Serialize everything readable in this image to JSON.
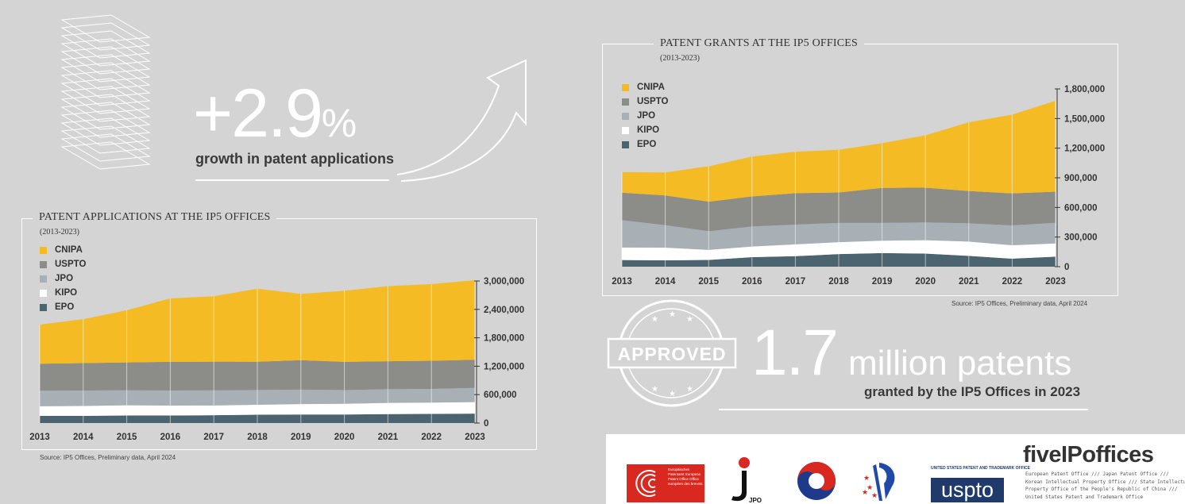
{
  "headline": {
    "growth_value": "+2.9",
    "growth_unit": "%",
    "growth_caption": "growth in patent applications"
  },
  "grants_highlight": {
    "value": "1.7",
    "unit": "million patents",
    "caption": "granted by the IP5 Offices in 2023",
    "stamp_label": "APPROVED"
  },
  "colors": {
    "CNIPA": "#f4bb24",
    "USPTO": "#8c8c88",
    "JPO": "#a8b0b6",
    "KIPO": "#ffffff",
    "EPO": "#4b6470",
    "background": "#d4d4d4"
  },
  "logos": {
    "epo_text": "Europäisches Patentamt European Patent Office Office européen des brevets",
    "jpo_label": "JPO",
    "uspto_small": "UNITED STATES PATENT AND TRADEMARK OFFICE",
    "uspto_word": "uspto",
    "five_title": "fiveIPoffices",
    "five_line1": "European Patent Office /// Japan Patent Office ///",
    "five_line2": "Korean Intellectual Property Office /// State Intellectual",
    "five_line3": "Property Office of the People's Republic of China ///",
    "five_line4": "United States Patent and Trademark Office"
  },
  "chart_data": [
    {
      "id": "applications",
      "type": "area",
      "stacked": true,
      "title": "PATENT APPLICATIONS AT THE IP5 OFFICES",
      "subtitle": "(2013-2023)",
      "source": "Source: IP5 Offices, Preliminary data, April 2024",
      "x": [
        "2013",
        "2014",
        "2015",
        "2016",
        "2017",
        "2018",
        "2019",
        "2020",
        "2021",
        "2022",
        "2023"
      ],
      "ylim": [
        0,
        3000000
      ],
      "yticks": [
        "0",
        "600,000",
        "1,200,000",
        "1,800,000",
        "2,400,000",
        "3,000,000"
      ],
      "ytick_values": [
        0,
        600000,
        1200000,
        1800000,
        2400000,
        3000000
      ],
      "legend_position": "top-left",
      "series": [
        {
          "name": "EPO",
          "values": [
            150000,
            150000,
            160000,
            160000,
            166000,
            175000,
            181000,
            180000,
            188000,
            193000,
            199000
          ]
        },
        {
          "name": "KIPO",
          "values": [
            205000,
            210000,
            214000,
            209000,
            205000,
            210000,
            219000,
            227000,
            237000,
            238000,
            243000
          ]
        },
        {
          "name": "JPO",
          "values": [
            328000,
            326000,
            318000,
            318000,
            318000,
            313000,
            307000,
            288000,
            289000,
            289000,
            300000
          ]
        },
        {
          "name": "USPTO",
          "values": [
            570000,
            579000,
            589000,
            605000,
            607000,
            597000,
            621000,
            597000,
            591000,
            595000,
            595000
          ]
        },
        {
          "name": "CNIPA",
          "values": [
            825000,
            928000,
            1100000,
            1340000,
            1382000,
            1542000,
            1400000,
            1500000,
            1586000,
            1620000,
            1680000
          ]
        }
      ]
    },
    {
      "id": "grants",
      "type": "area",
      "stacked": true,
      "title": "PATENT GRANTS AT THE IP5 OFFICES",
      "subtitle": "(2013-2023)",
      "source": "Source: IP5 Offices, Preliminary data, April 2024",
      "x": [
        "2013",
        "2014",
        "2015",
        "2016",
        "2017",
        "2018",
        "2019",
        "2020",
        "2021",
        "2022",
        "2023"
      ],
      "ylim": [
        0,
        1800000
      ],
      "yticks": [
        "0",
        "300,000",
        "600,000",
        "900,000",
        "1,200,000",
        "1,500,000",
        "1,800,000"
      ],
      "ytick_values": [
        0,
        300000,
        600000,
        900000,
        1200000,
        1500000,
        1800000
      ],
      "legend_position": "top-left",
      "series": [
        {
          "name": "EPO",
          "values": [
            67000,
            64000,
            68000,
            96000,
            106000,
            128000,
            138000,
            133000,
            109000,
            81000,
            101000
          ]
        },
        {
          "name": "KIPO",
          "values": [
            127000,
            129000,
            102000,
            108000,
            120000,
            120000,
            125000,
            135000,
            145000,
            136000,
            134000
          ]
        },
        {
          "name": "JPO",
          "values": [
            277000,
            227000,
            189000,
            203000,
            200000,
            195000,
            180000,
            180000,
            185000,
            201000,
            209000
          ]
        },
        {
          "name": "USPTO",
          "values": [
            278000,
            301000,
            299000,
            304000,
            318000,
            308000,
            355000,
            352000,
            327000,
            324000,
            315000
          ]
        },
        {
          "name": "CNIPA",
          "values": [
            208000,
            233000,
            359000,
            404000,
            420000,
            432000,
            453000,
            530000,
            696000,
            798000,
            921000
          ]
        }
      ]
    }
  ]
}
